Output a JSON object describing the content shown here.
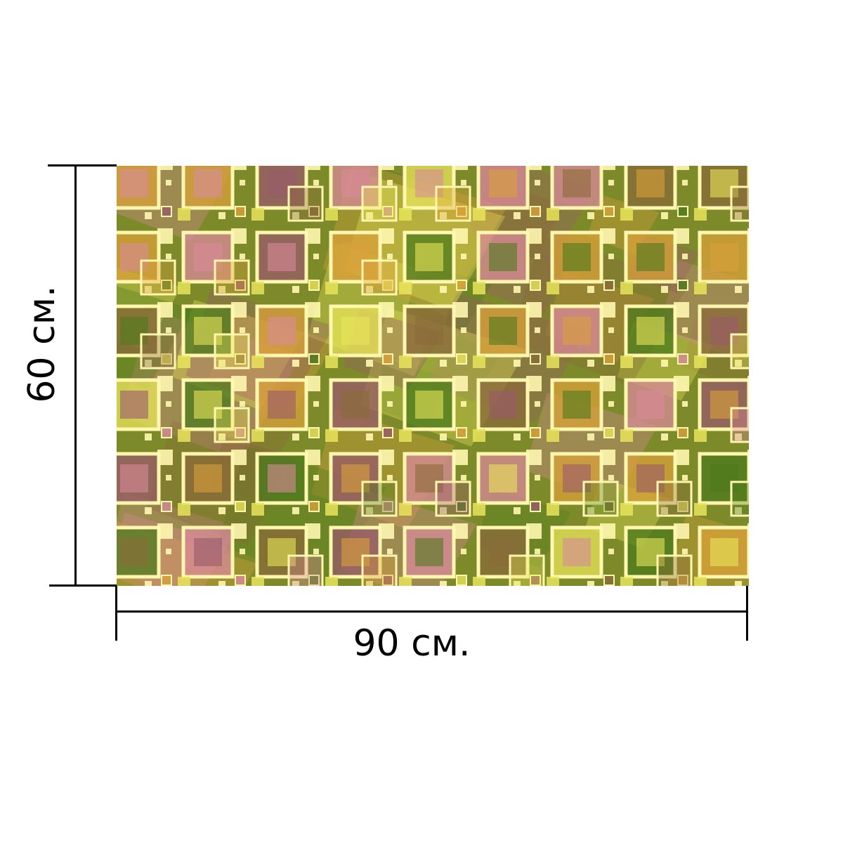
{
  "product": {
    "width_label": "90 см.",
    "height_label": "60 см."
  },
  "pattern": {
    "description_colors": {
      "base": "#7d8a2a",
      "green": "#4e7a1e",
      "yellow": "#e8e45a",
      "pale": "#fff7b0",
      "pink": "#d98a9a",
      "mauve": "#9a5a6a",
      "orange": "#d9a03a",
      "brown": "#8a6a3a"
    }
  }
}
